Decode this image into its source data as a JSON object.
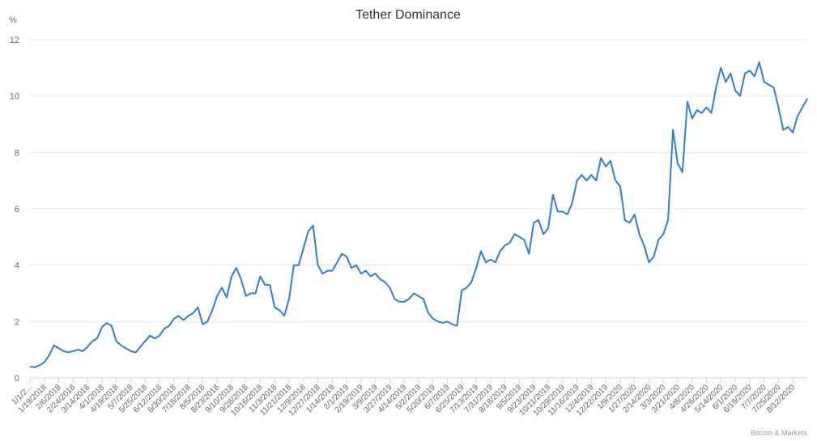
{
  "chart_data": {
    "type": "line",
    "title": "Tether Dominance",
    "y_label": "%",
    "credit": "Bitcoin & Markets",
    "categories": [
      "1/1/2...",
      null,
      null,
      "1/19/2018",
      null,
      null,
      "2/6/2018",
      null,
      null,
      "2/24/2018",
      null,
      null,
      "3/14/2018",
      null,
      null,
      "4/1/2018",
      null,
      null,
      "4/19/2018",
      null,
      null,
      "5/7/2018",
      null,
      null,
      "5/25/2018",
      null,
      null,
      "6/12/2018",
      null,
      null,
      "6/30/2018",
      null,
      null,
      "7/18/2018",
      null,
      null,
      "8/5/2018",
      null,
      null,
      "8/23/2018",
      null,
      null,
      "9/10/2018",
      null,
      null,
      "9/28/2018",
      null,
      null,
      "10/16/2018",
      null,
      null,
      "11/3/2018",
      null,
      null,
      "11/21/2018",
      null,
      null,
      "12/9/2018",
      null,
      null,
      "12/27/2018",
      null,
      null,
      "1/14/2019",
      null,
      null,
      "2/1/2019",
      null,
      null,
      "2/19/2019",
      null,
      null,
      "3/9/2019",
      null,
      null,
      "3/27/2019",
      null,
      null,
      "4/14/2019",
      null,
      null,
      "5/2/2019",
      null,
      null,
      "5/20/2019",
      null,
      null,
      "6/7/2019",
      null,
      null,
      "6/25/2019",
      null,
      null,
      "7/13/2019",
      null,
      null,
      "7/31/2019",
      null,
      null,
      "8/18/2019",
      null,
      null,
      "9/5/2019",
      null,
      null,
      "9/23/2019",
      null,
      null,
      "10/11/2019",
      null,
      null,
      "10/29/2019",
      null,
      null,
      "11/16/2019",
      null,
      null,
      "12/4/2019",
      null,
      null,
      "12/22/2019",
      null,
      null,
      "1/9/2020",
      null,
      null,
      "1/27/2020",
      null,
      null,
      "2/14/2020",
      null,
      null,
      "3/3/2020",
      null,
      null,
      "3/21/2020",
      null,
      null,
      "4/8/2020",
      null,
      null,
      "4/26/2020",
      null,
      null,
      "5/14/2020",
      null,
      null,
      "6/1/2020",
      null,
      null,
      "6/19/2020",
      null,
      null,
      "7/7/2020",
      null,
      null,
      "7/25/2020",
      null,
      null,
      "8/12/2020",
      null,
      null,
      null
    ],
    "series": [
      {
        "name": "Tether Dominance",
        "color": "#2f7ed8",
        "values": [
          0.4,
          0.38,
          0.45,
          0.55,
          0.8,
          1.15,
          1.05,
          0.95,
          0.9,
          0.95,
          1.0,
          0.95,
          1.1,
          1.3,
          1.4,
          1.8,
          1.95,
          1.85,
          1.3,
          1.15,
          1.05,
          0.95,
          0.9,
          1.1,
          1.3,
          1.5,
          1.4,
          1.5,
          1.75,
          1.85,
          2.1,
          2.2,
          2.05,
          2.2,
          2.3,
          2.5,
          1.9,
          2.0,
          2.4,
          2.9,
          3.2,
          2.85,
          3.6,
          3.9,
          3.5,
          2.9,
          3.0,
          3.0,
          3.6,
          3.3,
          3.3,
          2.5,
          2.4,
          2.2,
          2.8,
          4.0,
          4.0,
          4.6,
          5.2,
          5.4,
          4.0,
          3.7,
          3.8,
          3.8,
          4.1,
          4.4,
          4.3,
          3.9,
          4.0,
          3.7,
          3.8,
          3.6,
          3.7,
          3.5,
          3.4,
          3.2,
          2.8,
          2.7,
          2.7,
          2.8,
          3.0,
          2.9,
          2.8,
          2.3,
          2.1,
          2.0,
          1.95,
          2.0,
          1.9,
          1.85,
          3.1,
          3.2,
          3.4,
          3.9,
          4.5,
          4.1,
          4.2,
          4.1,
          4.5,
          4.7,
          4.8,
          5.1,
          5.0,
          4.9,
          4.4,
          5.5,
          5.6,
          5.1,
          5.3,
          6.5,
          5.9,
          5.9,
          5.8,
          6.2,
          7.0,
          7.2,
          7.0,
          7.2,
          7.0,
          7.8,
          7.5,
          7.7,
          7.0,
          6.8,
          5.6,
          5.5,
          5.8,
          5.1,
          4.7,
          4.1,
          4.3,
          4.9,
          5.1,
          5.6,
          8.8,
          7.6,
          7.3,
          9.8,
          9.2,
          9.5,
          9.4,
          9.6,
          9.4,
          10.3,
          11.0,
          10.5,
          10.8,
          10.2,
          10.0,
          10.8,
          10.9,
          10.7,
          11.2,
          10.5,
          10.4,
          10.3,
          9.6,
          8.8,
          8.9,
          8.7,
          9.3,
          9.6,
          9.9
        ]
      }
    ],
    "ylim": [
      0,
      12
    ],
    "yticks": [
      0,
      2,
      4,
      6,
      8,
      10,
      12
    ],
    "grid": true
  }
}
